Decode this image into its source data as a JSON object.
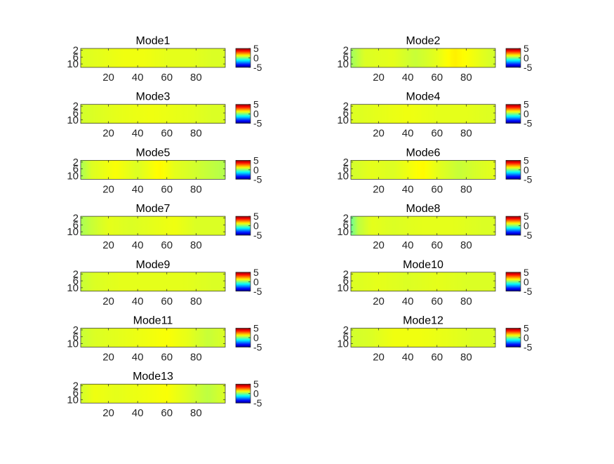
{
  "figure": {
    "background": "#ffffff",
    "layout": {
      "rows": 7,
      "cols": 2
    }
  },
  "chart_data": [
    {
      "type": "heatmap",
      "title": "Mode1",
      "x": {
        "lim": [
          1,
          100
        ],
        "ticks": [
          20,
          40,
          60,
          80
        ]
      },
      "y": {
        "lim": [
          1,
          12
        ],
        "ticks": [
          2,
          6,
          10
        ],
        "reversed": true
      },
      "profile_x": [
        1,
        15,
        30,
        45,
        60,
        75,
        90,
        100
      ],
      "profile_v": [
        0.9,
        1.0,
        1.1,
        1.1,
        1.0,
        1.0,
        0.9,
        0.9
      ],
      "colorbar": {
        "colormap": "jet",
        "clim": [
          -5,
          5
        ],
        "ticks": [
          5,
          0,
          -5
        ]
      }
    },
    {
      "type": "heatmap",
      "title": "Mode2",
      "x": {
        "lim": [
          1,
          100
        ],
        "ticks": [
          20,
          40,
          60,
          80
        ]
      },
      "y": {
        "lim": [
          1,
          12
        ],
        "ticks": [
          2,
          6,
          10
        ],
        "reversed": true
      },
      "profile_x": [
        1,
        10,
        30,
        45,
        60,
        72,
        90,
        100
      ],
      "profile_v": [
        0.3,
        0.9,
        1.0,
        0.7,
        1.0,
        1.4,
        1.0,
        0.8
      ],
      "colorbar": {
        "colormap": "jet",
        "clim": [
          -5,
          5
        ],
        "ticks": [
          5,
          0,
          -5
        ]
      }
    },
    {
      "type": "heatmap",
      "title": "Mode3",
      "x": {
        "lim": [
          1,
          100
        ],
        "ticks": [
          20,
          40,
          60,
          80
        ]
      },
      "y": {
        "lim": [
          1,
          12
        ],
        "ticks": [
          2,
          6,
          10
        ],
        "reversed": true
      },
      "profile_x": [
        1,
        10,
        25,
        50,
        75,
        90,
        100
      ],
      "profile_v": [
        0.8,
        0.9,
        1.0,
        1.1,
        1.0,
        0.9,
        0.9
      ],
      "colorbar": {
        "colormap": "jet",
        "clim": [
          -5,
          5
        ],
        "ticks": [
          5,
          0,
          -5
        ]
      }
    },
    {
      "type": "heatmap",
      "title": "Mode4",
      "x": {
        "lim": [
          1,
          100
        ],
        "ticks": [
          20,
          40,
          60,
          80
        ]
      },
      "y": {
        "lim": [
          1,
          12
        ],
        "ticks": [
          2,
          6,
          10
        ],
        "reversed": true
      },
      "profile_x": [
        1,
        20,
        40,
        60,
        80,
        100
      ],
      "profile_v": [
        0.9,
        1.0,
        1.1,
        1.0,
        1.0,
        0.9
      ],
      "colorbar": {
        "colormap": "jet",
        "clim": [
          -5,
          5
        ],
        "ticks": [
          5,
          0,
          -5
        ]
      }
    },
    {
      "type": "heatmap",
      "title": "Mode5",
      "x": {
        "lim": [
          1,
          100
        ],
        "ticks": [
          20,
          40,
          60,
          80
        ]
      },
      "y": {
        "lim": [
          1,
          12
        ],
        "ticks": [
          2,
          6,
          10
        ],
        "reversed": true
      },
      "profile_x": [
        1,
        8,
        25,
        40,
        55,
        65,
        80,
        100
      ],
      "profile_v": [
        0.4,
        0.9,
        1.2,
        0.9,
        1.3,
        1.0,
        0.8,
        0.5
      ],
      "colorbar": {
        "colormap": "jet",
        "clim": [
          -5,
          5
        ],
        "ticks": [
          5,
          0,
          -5
        ]
      }
    },
    {
      "type": "heatmap",
      "title": "Mode6",
      "x": {
        "lim": [
          1,
          100
        ],
        "ticks": [
          20,
          40,
          60,
          80
        ]
      },
      "y": {
        "lim": [
          1,
          12
        ],
        "ticks": [
          2,
          6,
          10
        ],
        "reversed": true
      },
      "profile_x": [
        1,
        15,
        30,
        50,
        60,
        75,
        90,
        100
      ],
      "profile_v": [
        0.8,
        1.0,
        0.9,
        1.3,
        1.0,
        0.7,
        0.9,
        1.0
      ],
      "colorbar": {
        "colormap": "jet",
        "clim": [
          -5,
          5
        ],
        "ticks": [
          5,
          0,
          -5
        ]
      }
    },
    {
      "type": "heatmap",
      "title": "Mode7",
      "x": {
        "lim": [
          1,
          100
        ],
        "ticks": [
          20,
          40,
          60,
          80
        ]
      },
      "y": {
        "lim": [
          1,
          12
        ],
        "ticks": [
          2,
          6,
          10
        ],
        "reversed": true
      },
      "profile_x": [
        1,
        8,
        20,
        35,
        50,
        65,
        80,
        100
      ],
      "profile_v": [
        0.4,
        0.7,
        1.0,
        0.9,
        1.0,
        1.1,
        0.9,
        0.9
      ],
      "colorbar": {
        "colormap": "jet",
        "clim": [
          -5,
          5
        ],
        "ticks": [
          5,
          0,
          -5
        ]
      }
    },
    {
      "type": "heatmap",
      "title": "Mode8",
      "x": {
        "lim": [
          1,
          100
        ],
        "ticks": [
          20,
          40,
          60,
          80
        ]
      },
      "y": {
        "lim": [
          1,
          12
        ],
        "ticks": [
          2,
          6,
          10
        ],
        "reversed": true
      },
      "profile_x": [
        1,
        6,
        15,
        30,
        50,
        70,
        90,
        100
      ],
      "profile_v": [
        -0.2,
        0.6,
        1.0,
        0.9,
        1.0,
        1.0,
        0.9,
        0.9
      ],
      "colorbar": {
        "colormap": "jet",
        "clim": [
          -5,
          5
        ],
        "ticks": [
          5,
          0,
          -5
        ]
      }
    },
    {
      "type": "heatmap",
      "title": "Mode9",
      "x": {
        "lim": [
          1,
          100
        ],
        "ticks": [
          20,
          40,
          60,
          80
        ]
      },
      "y": {
        "lim": [
          1,
          12
        ],
        "ticks": [
          2,
          6,
          10
        ],
        "reversed": true
      },
      "profile_x": [
        1,
        10,
        30,
        50,
        70,
        90,
        100
      ],
      "profile_v": [
        0.7,
        0.9,
        1.0,
        1.0,
        1.0,
        0.9,
        0.9
      ],
      "colorbar": {
        "colormap": "jet",
        "clim": [
          -5,
          5
        ],
        "ticks": [
          5,
          0,
          -5
        ]
      }
    },
    {
      "type": "heatmap",
      "title": "Mode10",
      "x": {
        "lim": [
          1,
          100
        ],
        "ticks": [
          20,
          40,
          60,
          80
        ]
      },
      "y": {
        "lim": [
          1,
          12
        ],
        "ticks": [
          2,
          6,
          10
        ],
        "reversed": true
      },
      "profile_x": [
        1,
        20,
        40,
        60,
        80,
        100
      ],
      "profile_v": [
        0.9,
        1.0,
        0.9,
        1.0,
        0.9,
        0.9
      ],
      "colorbar": {
        "colormap": "jet",
        "clim": [
          -5,
          5
        ],
        "ticks": [
          5,
          0,
          -5
        ]
      }
    },
    {
      "type": "heatmap",
      "title": "Mode11",
      "x": {
        "lim": [
          1,
          100
        ],
        "ticks": [
          20,
          40,
          60,
          80
        ]
      },
      "y": {
        "lim": [
          1,
          12
        ],
        "ticks": [
          2,
          6,
          10
        ],
        "reversed": true
      },
      "profile_x": [
        1,
        10,
        30,
        45,
        60,
        75,
        88,
        100
      ],
      "profile_v": [
        0.7,
        0.9,
        1.0,
        1.1,
        1.2,
        1.0,
        0.7,
        0.9
      ],
      "colorbar": {
        "colormap": "jet",
        "clim": [
          -5,
          5
        ],
        "ticks": [
          5,
          0,
          -5
        ]
      }
    },
    {
      "type": "heatmap",
      "title": "Mode12",
      "x": {
        "lim": [
          1,
          100
        ],
        "ticks": [
          20,
          40,
          60,
          80
        ]
      },
      "y": {
        "lim": [
          1,
          12
        ],
        "ticks": [
          2,
          6,
          10
        ],
        "reversed": true
      },
      "profile_x": [
        1,
        15,
        30,
        50,
        70,
        85,
        100
      ],
      "profile_v": [
        0.8,
        0.9,
        1.1,
        1.1,
        1.0,
        0.9,
        0.9
      ],
      "colorbar": {
        "colormap": "jet",
        "clim": [
          -5,
          5
        ],
        "ticks": [
          5,
          0,
          -5
        ]
      }
    },
    {
      "type": "heatmap",
      "title": "Mode13",
      "x": {
        "lim": [
          1,
          100
        ],
        "ticks": [
          20,
          40,
          60,
          80
        ]
      },
      "y": {
        "lim": [
          1,
          12
        ],
        "ticks": [
          2,
          6,
          10
        ],
        "reversed": true
      },
      "profile_x": [
        1,
        10,
        25,
        45,
        60,
        75,
        88,
        100
      ],
      "profile_v": [
        0.8,
        1.1,
        1.0,
        1.1,
        1.2,
        0.9,
        0.6,
        0.9
      ],
      "colorbar": {
        "colormap": "jet",
        "clim": [
          -5,
          5
        ],
        "ticks": [
          5,
          0,
          -5
        ]
      }
    }
  ]
}
